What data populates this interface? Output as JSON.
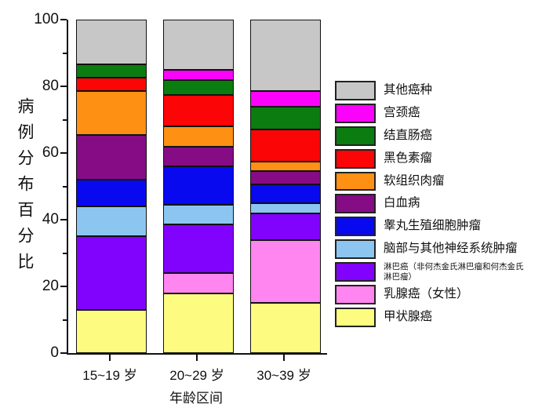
{
  "chart_data": {
    "type": "bar",
    "variant": "stacked",
    "title": "",
    "xlabel": "年龄区间",
    "ylabel": "病例分布百分比",
    "ylim": [
      0,
      100
    ],
    "grid": false,
    "legend_position": "right",
    "y_axis": {
      "major_ticks": [
        0,
        20,
        40,
        60,
        80,
        100
      ],
      "minor_ticks": [
        10,
        30,
        50,
        70,
        90
      ]
    },
    "categories": [
      "15~19 岁",
      "20~29 岁",
      "30~39 岁"
    ],
    "stack_order": "first series at bottom of bar; legend lists series top-to-bottom (reverse order)",
    "series": [
      {
        "name": "甲状腺癌",
        "color": "#fdfc80",
        "values": [
          13,
          18,
          15
        ]
      },
      {
        "name": "乳腺癌（女性）",
        "color": "#ff85f0",
        "values": [
          0,
          6,
          19
        ]
      },
      {
        "name": "淋巴癌（非何杰金氏淋巴瘤和何杰金氏淋巴瘤）",
        "color": "#8103fe",
        "values": [
          22,
          14.5,
          8
        ],
        "small_legend_label": true
      },
      {
        "name": "脑部与其他神经系统肿瘤",
        "color": "#8cc6f0",
        "values": [
          9,
          6,
          3
        ]
      },
      {
        "name": "睾丸生殖细胞肿瘤",
        "color": "#0909f0",
        "values": [
          8,
          11.5,
          5.5
        ]
      },
      {
        "name": "白血病",
        "color": "#850c85",
        "values": [
          13.5,
          6,
          4
        ]
      },
      {
        "name": "软组织肉瘤",
        "color": "#fe9014",
        "values": [
          13,
          6,
          3
        ]
      },
      {
        "name": "黑色素瘤",
        "color": "#fb0507",
        "values": [
          4,
          9.5,
          9.5
        ]
      },
      {
        "name": "结直肠癌",
        "color": "#0b7c10",
        "values": [
          4,
          4.5,
          7
        ]
      },
      {
        "name": "宫颈癌",
        "color": "#fb02fb",
        "values": [
          0,
          3,
          4.5
        ]
      },
      {
        "name": "其他癌种",
        "color": "#c7c7c7",
        "values": [
          13.5,
          15,
          21.5
        ]
      }
    ]
  }
}
